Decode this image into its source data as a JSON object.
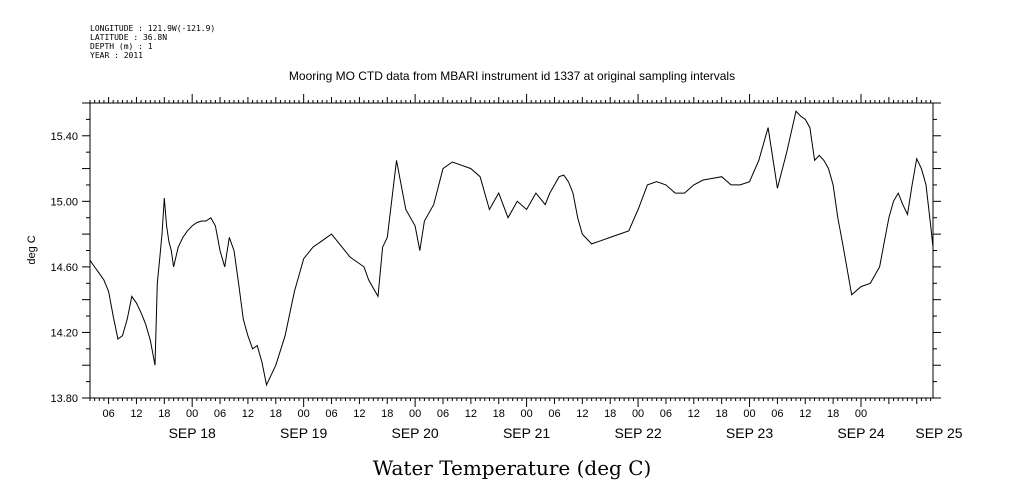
{
  "header": {
    "longitude": "LONGITUDE : 121.9W(-121.9)",
    "latitude": "LATITUDE : 36.8N",
    "depth": "DEPTH (m) : 1",
    "year": "YEAR : 2011"
  },
  "chart_data": {
    "type": "line",
    "title": "Mooring MO CTD data from MBARI instrument id 1337 at original sampling intervals",
    "ylabel": "deg C",
    "xlabel": "Water Temperature (deg C)",
    "ylim": [
      13.8,
      15.6
    ],
    "yticks": [
      "13.80",
      "14.20",
      "14.60",
      "15.00",
      "15.40"
    ],
    "xlim_hours": [
      0,
      2
    ],
    "x_unit": "hours since 2011-09-17 00:00",
    "xlim": [
      2,
      183.5
    ],
    "hour_tick_labels": [
      "06",
      "12",
      "18",
      "00",
      "06",
      "12",
      "18",
      "00",
      "06",
      "12",
      "18",
      "00",
      "06",
      "12",
      "18",
      "00",
      "06",
      "12",
      "18",
      "00",
      "06",
      "12",
      "18",
      "00",
      "06",
      "12",
      "18",
      "00"
    ],
    "day_labels": [
      "SEP 18",
      "SEP 19",
      "SEP 20",
      "SEP 21",
      "SEP 22",
      "SEP 23",
      "SEP 24",
      "SEP 25"
    ],
    "series": [
      {
        "x": [
          2,
          3,
          4,
          5,
          6,
          7,
          8,
          9,
          10,
          11,
          12,
          13,
          14,
          15,
          16,
          16.5,
          17,
          17.5,
          18,
          18.5,
          19,
          19.5,
          20,
          21,
          22,
          23,
          24,
          25,
          26,
          27,
          28,
          29,
          30,
          31,
          32,
          33,
          34,
          35,
          36,
          37,
          38,
          39,
          40,
          42,
          44,
          46,
          48,
          50,
          52,
          54,
          56,
          58,
          60,
          61,
          62,
          64,
          65,
          66,
          68,
          70,
          72,
          73,
          74,
          76,
          78,
          80,
          82,
          84,
          86,
          88,
          90,
          92,
          94,
          96,
          98,
          100,
          101,
          102,
          103,
          104,
          105,
          106,
          107,
          108,
          110,
          112,
          114,
          116,
          118,
          120,
          122,
          124,
          126,
          128,
          130,
          132,
          134,
          136,
          138,
          140,
          142,
          144,
          146,
          148,
          150,
          152,
          154,
          155,
          156,
          157,
          158,
          159,
          160,
          161,
          162,
          163,
          164,
          166,
          168,
          170,
          171,
          172,
          173,
          174,
          175,
          176,
          177,
          178,
          179,
          180,
          181,
          182,
          183,
          183.5
        ],
        "y": [
          14.64,
          14.6,
          14.56,
          14.52,
          14.45,
          14.3,
          14.16,
          14.18,
          14.28,
          14.42,
          14.38,
          14.32,
          14.25,
          14.15,
          14.0,
          14.5,
          14.65,
          14.8,
          15.02,
          14.85,
          14.75,
          14.7,
          14.6,
          14.72,
          14.78,
          14.82,
          14.85,
          14.87,
          14.88,
          14.88,
          14.9,
          14.85,
          14.7,
          14.6,
          14.78,
          14.7,
          14.5,
          14.28,
          14.18,
          14.1,
          14.12,
          14.02,
          13.88,
          14.0,
          14.18,
          14.45,
          14.65,
          14.72,
          14.76,
          14.8,
          14.73,
          14.66,
          14.62,
          14.6,
          14.52,
          14.42,
          14.72,
          14.78,
          15.25,
          14.95,
          14.85,
          14.7,
          14.88,
          14.98,
          15.2,
          15.24,
          15.22,
          15.2,
          15.15,
          14.95,
          15.05,
          14.9,
          15.0,
          14.95,
          15.05,
          14.98,
          15.05,
          15.1,
          15.15,
          15.16,
          15.12,
          15.05,
          14.9,
          14.8,
          14.74,
          14.76,
          14.78,
          14.8,
          14.82,
          14.95,
          15.1,
          15.12,
          15.1,
          15.05,
          15.05,
          15.1,
          15.13,
          15.14,
          15.15,
          15.1,
          15.1,
          15.12,
          15.25,
          15.45,
          15.08,
          15.3,
          15.55,
          15.52,
          15.5,
          15.45,
          15.25,
          15.28,
          15.25,
          15.2,
          15.1,
          14.9,
          14.75,
          14.43,
          14.48,
          14.5,
          14.55,
          14.6,
          14.75,
          14.9,
          15.0,
          15.05,
          14.98,
          14.92,
          15.1,
          15.26,
          15.2,
          15.1,
          14.85,
          14.72
        ]
      }
    ]
  }
}
